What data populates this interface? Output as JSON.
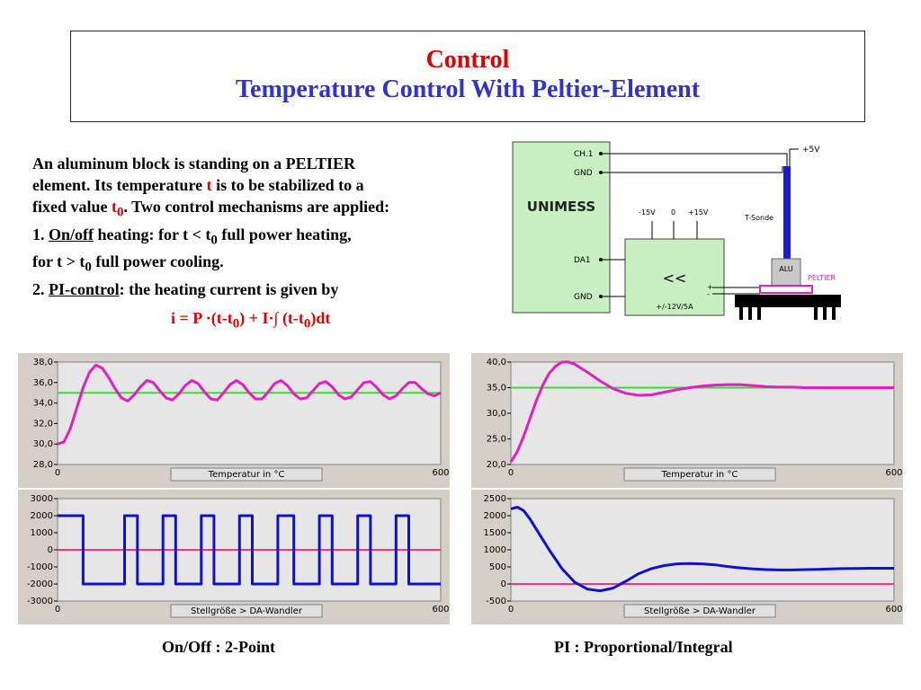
{
  "title": {
    "line1": "Control",
    "line2": "Temperature Control With Peltier-Element"
  },
  "description": {
    "l1": "An aluminum block is standing on a PELTIER",
    "l2a": "element. Its temperature ",
    "l2t": "t",
    "l2b": " is to be stabilized to a",
    "l3a": "fixed value ",
    "l3t": "t",
    "l3sub": "0",
    "l3b": ". Two control mechanisms are applied:",
    "l4a": "1. ",
    "l4u": "On/off",
    "l4b": " heating: for t < t",
    "l4sub": "0",
    "l4c": "  full power heating,",
    "l5a": "for t > t",
    "l5sub": "0",
    "l5b": "  full power cooling.",
    "l6a": "2. ",
    "l6u": "PI-control",
    "l6b": ": the heating current is given by"
  },
  "formula": {
    "a": "i = P ·(t-t",
    "s1": "0",
    "b": ") + I·∫ (t-t",
    "s2": "0",
    "c": ")dt"
  },
  "schematic": {
    "unimess": "UNIMESS",
    "ch1": "CH.1",
    "gnd1": "GND",
    "da1": "DA1",
    "gnd2": "GND",
    "m15": "-15V",
    "zero": "0",
    "p15": "+15V",
    "amp": "<<",
    "amp_spec": "+/-12V/5A",
    "tsonde": "T-Sonde",
    "p5v": "+5V",
    "alu": "ALU",
    "peltier": "PELTIER",
    "plus": "+",
    "minus": "-"
  },
  "captions": {
    "left": "On/Off  : 2-Point",
    "right": "PI   : Proportional/Integral"
  },
  "colors": {
    "temp_curve": "#e020c0",
    "setpoint": "#30e030",
    "control_curve": "#1010d0",
    "zero_line": "#ff3080",
    "title_red": "#e00000",
    "title_blue": "#3333cc"
  },
  "chart_data": [
    {
      "type": "line",
      "id": "onoff-temp",
      "label": "Temperatur in °C",
      "xlim": [
        0,
        600
      ],
      "ylim": [
        28,
        38
      ],
      "y_ticks": [
        "38,0",
        "36,0",
        "34,0",
        "32,0",
        "30,0",
        "28,0"
      ],
      "x_ticks": [
        "0",
        "600"
      ],
      "setpoint": 35,
      "series": [
        {
          "x": [
            0,
            10,
            20,
            30,
            40,
            50,
            60,
            70,
            80,
            90,
            100,
            110,
            120,
            130,
            140,
            150,
            160,
            170,
            180,
            190,
            200,
            210,
            220,
            230,
            240,
            250,
            260,
            270,
            280,
            290,
            300,
            310,
            320,
            330,
            340,
            350,
            360,
            370,
            380,
            390,
            400,
            410,
            420,
            430,
            440,
            450,
            460,
            470,
            480,
            490,
            500,
            510,
            520,
            530,
            540,
            550,
            560,
            570,
            580,
            590,
            600
          ],
          "values": [
            30.0,
            30.2,
            31.5,
            33.5,
            35.5,
            37.0,
            37.7,
            37.4,
            36.5,
            35.4,
            34.5,
            34.2,
            34.8,
            35.6,
            36.2,
            36.0,
            35.2,
            34.5,
            34.3,
            34.9,
            35.7,
            36.2,
            35.9,
            35.1,
            34.4,
            34.3,
            35.0,
            35.8,
            36.2,
            35.8,
            35.0,
            34.4,
            34.4,
            35.1,
            35.9,
            36.2,
            35.7,
            34.9,
            34.4,
            34.5,
            35.2,
            35.9,
            36.1,
            35.6,
            34.8,
            34.4,
            34.6,
            35.3,
            36.0,
            36.1,
            35.5,
            34.8,
            34.4,
            34.7,
            35.4,
            36.0,
            36.0,
            35.4,
            34.9,
            34.7,
            35.0
          ]
        }
      ]
    },
    {
      "type": "line",
      "id": "onoff-control",
      "label": "Stellgröße > DA-Wandler",
      "xlim": [
        0,
        600
      ],
      "ylim": [
        -3000,
        3000
      ],
      "y_ticks": [
        "3000",
        "2000",
        "1000",
        "0",
        "-1000",
        "-2000",
        "-3000"
      ],
      "x_ticks": [
        "0",
        "600"
      ],
      "zero_line": 0,
      "series": [
        {
          "x": [
            0,
            40,
            40,
            105,
            105,
            125,
            125,
            165,
            165,
            185,
            185,
            225,
            225,
            245,
            245,
            285,
            285,
            305,
            305,
            345,
            345,
            370,
            370,
            410,
            410,
            430,
            430,
            470,
            470,
            490,
            490,
            530,
            530,
            550,
            550,
            600
          ],
          "values": [
            2000,
            2000,
            -2000,
            -2000,
            2000,
            2000,
            -2000,
            -2000,
            2000,
            2000,
            -2000,
            -2000,
            2000,
            2000,
            -2000,
            -2000,
            2000,
            2000,
            -2000,
            -2000,
            2000,
            2000,
            -2000,
            -2000,
            2000,
            2000,
            -2000,
            -2000,
            2000,
            2000,
            -2000,
            -2000,
            2000,
            2000,
            -2000,
            -2000
          ]
        }
      ]
    },
    {
      "type": "line",
      "id": "pi-temp",
      "label": "Temperatur in °C",
      "xlim": [
        0,
        600
      ],
      "ylim": [
        20,
        40
      ],
      "y_ticks": [
        "40,0",
        "35,0",
        "30,0",
        "25,0",
        "20,0"
      ],
      "x_ticks": [
        "0",
        "600"
      ],
      "setpoint": 35,
      "series": [
        {
          "x": [
            0,
            10,
            20,
            30,
            40,
            50,
            60,
            70,
            80,
            90,
            100,
            120,
            140,
            160,
            180,
            200,
            220,
            240,
            260,
            280,
            300,
            320,
            340,
            360,
            380,
            400,
            420,
            440,
            460,
            480,
            500,
            520,
            540,
            560,
            580,
            600
          ],
          "values": [
            20.5,
            22.5,
            25.5,
            29.0,
            32.5,
            35.5,
            37.8,
            39.2,
            40.0,
            40.0,
            39.6,
            38.0,
            36.3,
            34.8,
            33.9,
            33.5,
            33.6,
            34.1,
            34.6,
            35.0,
            35.3,
            35.5,
            35.6,
            35.6,
            35.4,
            35.2,
            35.1,
            35.1,
            35.0,
            35.0,
            35.0,
            35.0,
            35.0,
            35.0,
            35.0,
            35.0
          ]
        }
      ]
    },
    {
      "type": "line",
      "id": "pi-control",
      "label": "Stellgröße > DA-Wandler",
      "xlim": [
        0,
        600
      ],
      "ylim": [
        -500,
        2500
      ],
      "y_ticks": [
        "2500",
        "2000",
        "1500",
        "1000",
        "500",
        "0",
        "-500"
      ],
      "x_ticks": [
        "0",
        "600"
      ],
      "zero_line": 0,
      "series": [
        {
          "x": [
            0,
            10,
            20,
            30,
            40,
            60,
            80,
            100,
            120,
            140,
            160,
            180,
            200,
            220,
            240,
            260,
            280,
            300,
            320,
            340,
            360,
            380,
            400,
            420,
            440,
            460,
            480,
            500,
            520,
            540,
            560,
            580,
            600
          ],
          "values": [
            2200,
            2250,
            2150,
            1900,
            1600,
            1000,
            450,
            50,
            -150,
            -200,
            -120,
            80,
            300,
            450,
            540,
            590,
            600,
            590,
            560,
            510,
            470,
            440,
            420,
            410,
            410,
            420,
            430,
            440,
            450,
            455,
            460,
            460,
            460
          ]
        }
      ]
    }
  ]
}
